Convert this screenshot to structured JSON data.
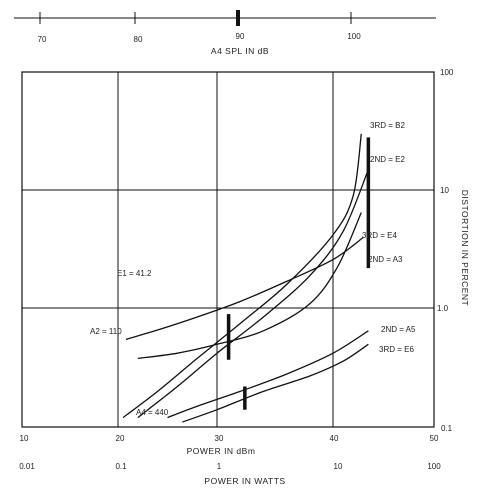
{
  "chart_data": {
    "type": "line",
    "top_axis": {
      "label": "A4 SPL IN dB",
      "ticks": [
        "70",
        "80",
        "90",
        "100"
      ]
    },
    "xlabel": "POWER IN dBm",
    "xlabel2": "POWER IN WATTS",
    "ylabel": "DISTORTION IN PERCENT",
    "x_ticks": [
      "10",
      "20",
      "30",
      "40",
      "50"
    ],
    "x2_ticks": [
      "0.01",
      "0.1",
      "1",
      "10",
      "100"
    ],
    "y_ticks": [
      "0.1",
      "1.0",
      "10",
      "100"
    ],
    "xlim": [
      10,
      50
    ],
    "ylim": [
      0.1,
      100
    ],
    "y_scale": "log",
    "grid": true,
    "series": [
      {
        "name": "3RD = B2",
        "x": [
          20.5,
          24,
          28,
          32,
          36,
          40,
          42,
          42.8
        ],
        "y": [
          0.12,
          0.2,
          0.38,
          0.75,
          1.6,
          4.2,
          9,
          30
        ]
      },
      {
        "name": "2ND = E2",
        "x": [
          22,
          26,
          30,
          34,
          38,
          41,
          43.5
        ],
        "y": [
          0.12,
          0.22,
          0.42,
          0.85,
          1.9,
          4.5,
          15
        ]
      },
      {
        "name": "3RD = E4",
        "x": [
          22,
          26,
          30,
          34,
          38,
          40.5,
          42.8
        ],
        "y": [
          0.38,
          0.42,
          0.5,
          0.65,
          1.1,
          2.3,
          6.5
        ]
      },
      {
        "name": "2ND = A3",
        "x": [
          20.8,
          24,
          28,
          32,
          36,
          40,
          43
        ],
        "y": [
          0.55,
          0.66,
          0.85,
          1.15,
          1.7,
          2.6,
          4
        ]
      },
      {
        "name": "2ND = A5",
        "x": [
          25,
          28,
          32,
          36,
          40,
          43.5
        ],
        "y": [
          0.12,
          0.15,
          0.2,
          0.28,
          0.42,
          0.65
        ]
      },
      {
        "name": "3RD = E6",
        "x": [
          26.5,
          30,
          34,
          38,
          41,
          43.5
        ],
        "y": [
          0.11,
          0.14,
          0.2,
          0.27,
          0.36,
          0.5
        ]
      }
    ],
    "markers": [
      {
        "x": 43.5,
        "y_range": [
          2.2,
          28
        ]
      },
      {
        "x": 31,
        "y_range": [
          0.37,
          0.9
        ]
      },
      {
        "x": 32.4,
        "y_range": [
          0.14,
          0.22
        ]
      }
    ],
    "top_marker": "90",
    "annotations": [
      {
        "text": "E1 = 41.2"
      },
      {
        "text": "A2 = 110"
      },
      {
        "text": "A4 = 440"
      }
    ]
  }
}
